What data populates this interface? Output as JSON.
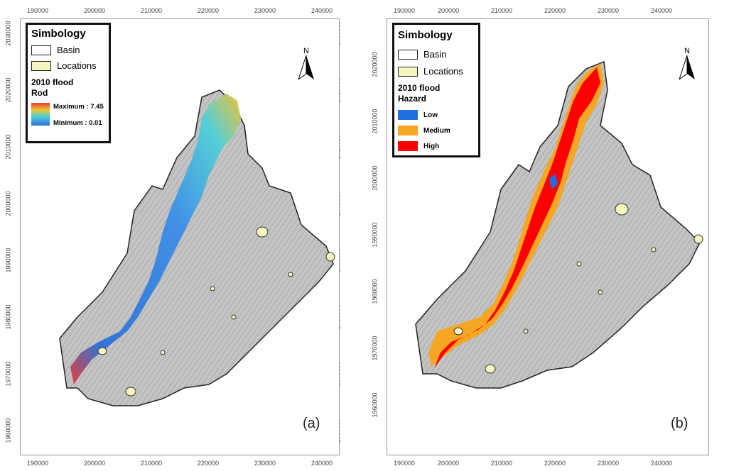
{
  "panels": [
    {
      "id": "a",
      "x_ticks": [
        "190000",
        "200000",
        "210000",
        "220000",
        "230000",
        "240000"
      ],
      "y_ticks": [
        "2030000",
        "2020000",
        "2010000",
        "2000000",
        "1990000",
        "1980000",
        "1970000",
        "1960000"
      ],
      "legend": {
        "title": "Simbology",
        "basin": "Basin",
        "locations": "Locations",
        "subtitle1": "2010 flood",
        "subtitle2": "Rod",
        "max_label": "Maximum : 7.45",
        "min_label": "Minimum : 0.01"
      },
      "north": "N",
      "panel_label": "(a)"
    },
    {
      "id": "b",
      "x_ticks": [
        "190000",
        "200000",
        "210000",
        "220000",
        "230000",
        "240000"
      ],
      "y_ticks": [
        "2020000",
        "2010000",
        "2000000",
        "1990000",
        "1980000",
        "1970000",
        "1960000"
      ],
      "legend": {
        "title": "Simbology",
        "basin": "Basin",
        "locations": "Locations",
        "subtitle1": "2010 flood",
        "subtitle2": "Hazard",
        "low": "Low",
        "medium": "Medium",
        "high": "High"
      },
      "north": "N",
      "panel_label": "(b)"
    }
  ],
  "colors": {
    "basin_fill": "#bdbdbd",
    "locations_fill": "#f5f5c0",
    "low": "#1f6fe0",
    "medium": "#f5a623",
    "high": "#ff0000",
    "depth_low": "#2b6fd6",
    "depth_high": "#e02020"
  }
}
